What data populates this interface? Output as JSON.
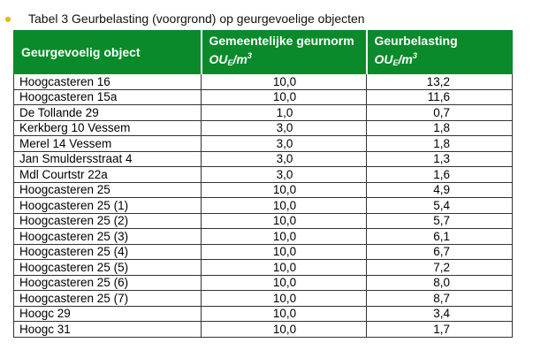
{
  "caption": "Tabel 3 Geurbelasting (voorgrond) op geurgevoelige objecten",
  "colors": {
    "header_bg": "#0a8a2a",
    "header_text": "#ffffff",
    "bullet": "#e6b800"
  },
  "table": {
    "headers": [
      {
        "label": "Geurgevoelig object"
      },
      {
        "label": "Gemeentelijke geurnorm",
        "unit_base": "OU",
        "unit_sub": "E",
        "unit_tail": "/m",
        "unit_sup": "3"
      },
      {
        "label": "Geurbelasting",
        "unit_base": "OU",
        "unit_sub": "E",
        "unit_tail": "/m",
        "unit_sup": "3"
      }
    ],
    "rows": [
      [
        "Hoogcasteren 16",
        "10,0",
        "13,2"
      ],
      [
        "Hoogcasteren 15a",
        "10,0",
        "11,6"
      ],
      [
        "De Tollande 29",
        "1,0",
        "0,7"
      ],
      [
        "Kerkberg 10 Vessem",
        "3,0",
        "1,8"
      ],
      [
        "Merel 14 Vessem",
        "3,0",
        "1,8"
      ],
      [
        "Jan Smuldersstraat 4",
        "3,0",
        "1,3"
      ],
      [
        "Mdl Courtstr 22a",
        "3,0",
        "1,6"
      ],
      [
        "Hoogcasteren 25",
        "10,0",
        "4,9"
      ],
      [
        "Hoogcasteren 25 (1)",
        "10,0",
        "5,4"
      ],
      [
        "Hoogcasteren 25 (2)",
        "10,0",
        "5,7"
      ],
      [
        "Hoogcasteren 25 (3)",
        "10,0",
        "6,1"
      ],
      [
        "Hoogcasteren 25 (4)",
        "10,0",
        "6,7"
      ],
      [
        "Hoogcasteren 25 (5)",
        "10,0",
        "7,2"
      ],
      [
        "Hoogcasteren 25 (6)",
        "10,0",
        "8,0"
      ],
      [
        "Hoogcasteren 25 (7)",
        "10,0",
        "8,7"
      ],
      [
        "Hoogc 29",
        "10,0",
        "3,4"
      ],
      [
        "Hoogc 31",
        "10,0",
        "1,7"
      ]
    ]
  }
}
